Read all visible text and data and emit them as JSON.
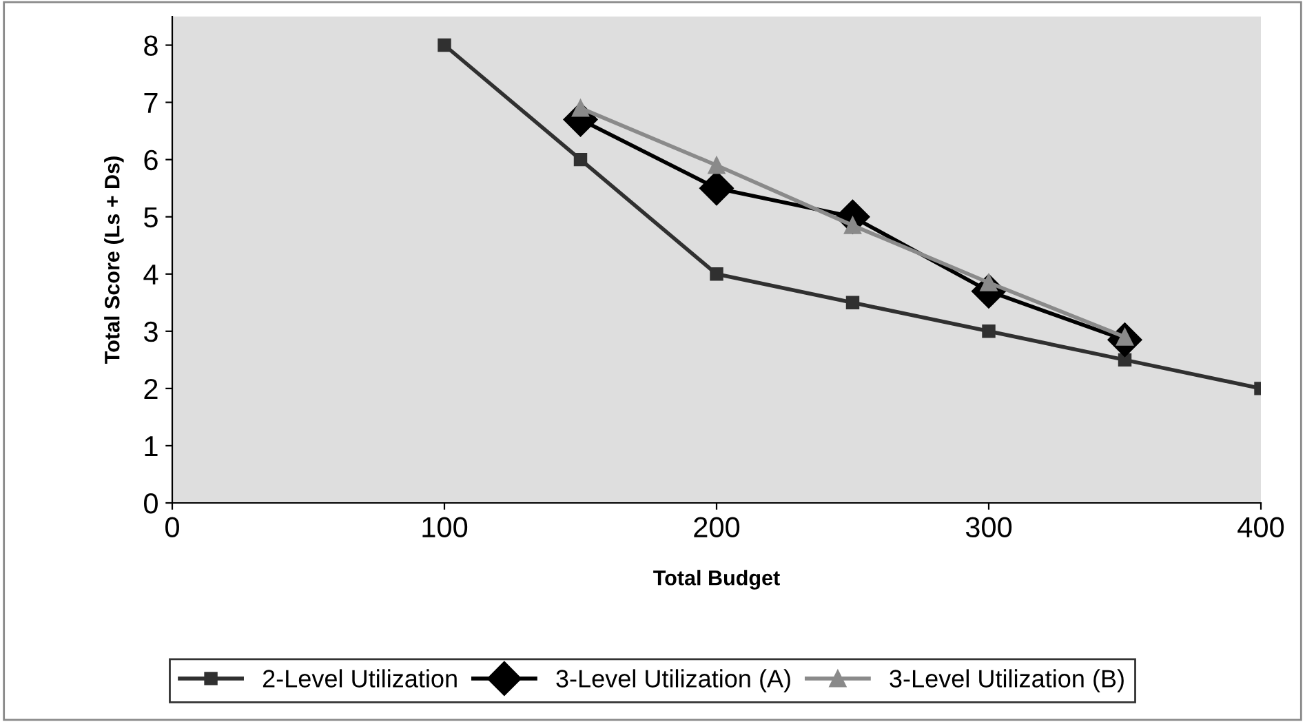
{
  "chart_data": {
    "type": "line",
    "xlabel": "Total Budget",
    "ylabel": "Total Score (Ls + Ds)",
    "xlim": [
      0,
      400
    ],
    "xticks": [
      0,
      100,
      200,
      300,
      400
    ],
    "ylim": [
      0,
      8.5
    ],
    "yticks": [
      0,
      1,
      2,
      3,
      4,
      5,
      6,
      7,
      8
    ],
    "grid": false,
    "legend": "bottom",
    "line_style": "solid",
    "series": [
      {
        "name": "2-Level Utilization",
        "color": "#303030",
        "marker": "square",
        "x": [
          100,
          150,
          200,
          250,
          300,
          350,
          400
        ],
        "values": [
          8,
          6,
          4,
          3.5,
          3,
          2.5,
          2
        ]
      },
      {
        "name": "3-Level Utilization (A)",
        "color": "#000000",
        "marker": "diamond",
        "x": [
          150,
          200,
          250,
          300,
          350
        ],
        "values": [
          6.7,
          5.5,
          5.0,
          3.7,
          2.85
        ]
      },
      {
        "name": "3-Level Utilization (B)",
        "color": "#8a8a8a",
        "marker": "triangle",
        "x": [
          150,
          200,
          250,
          300,
          350
        ],
        "values": [
          6.9,
          5.9,
          4.85,
          3.85,
          2.9
        ]
      }
    ]
  }
}
